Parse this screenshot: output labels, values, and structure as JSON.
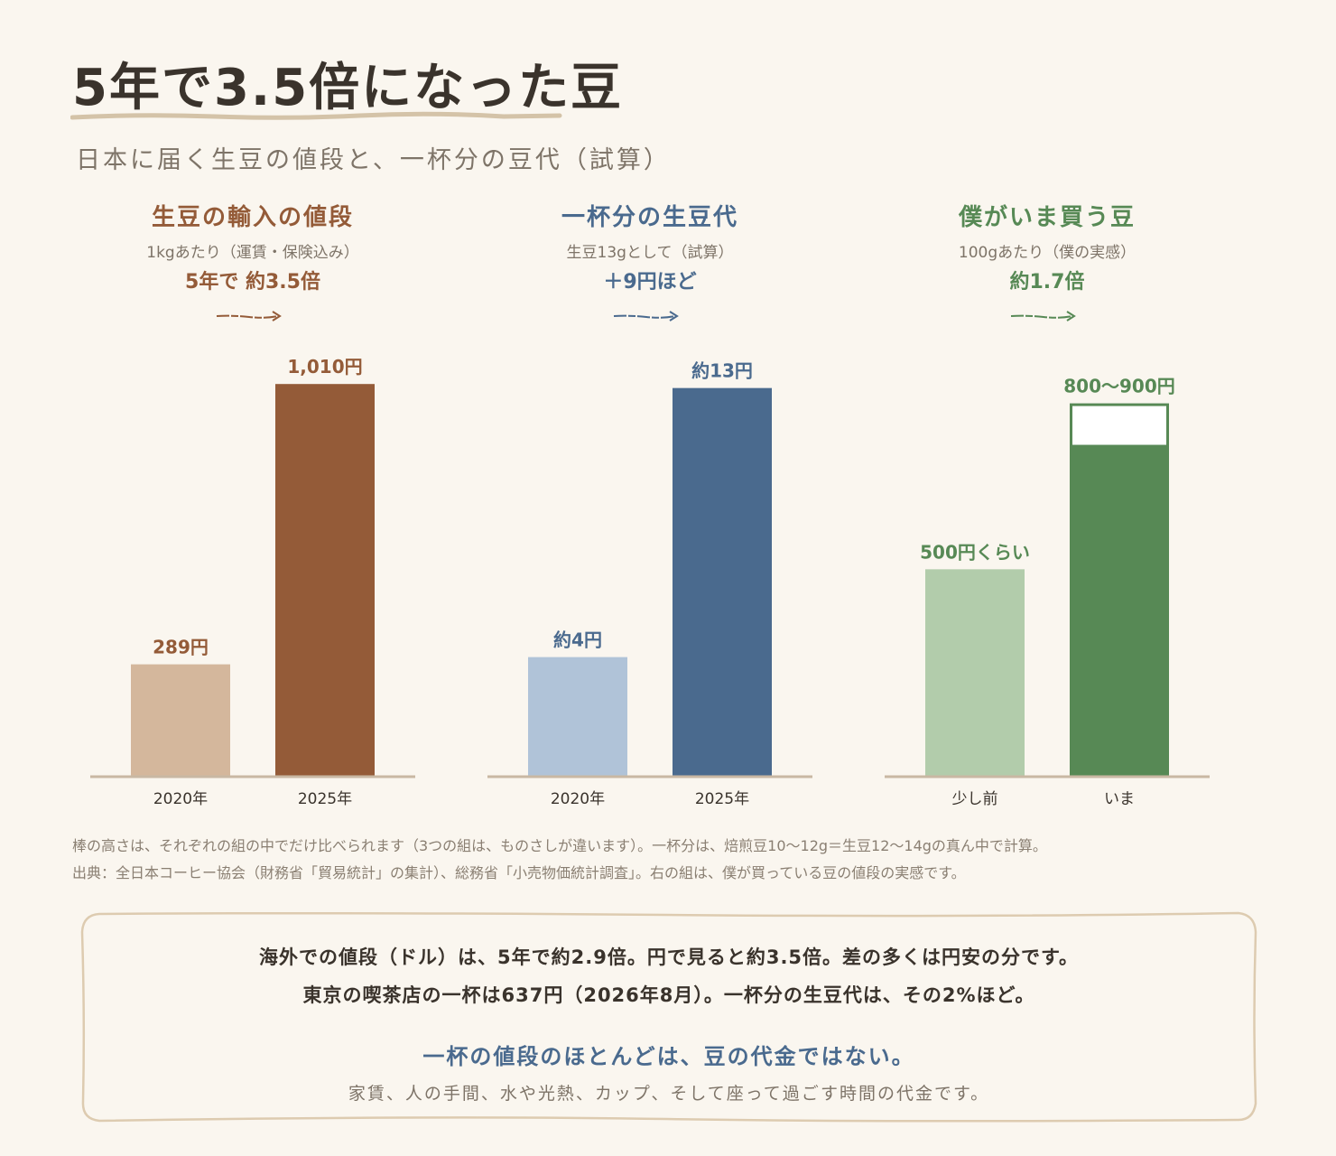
{
  "title": "5年で3.5倍になった豆",
  "subtitle": "日本に届く生豆の値段と、一杯分の豆代（試算）",
  "colors": {
    "background": "#faf6ef",
    "axis": "#c9b8a3",
    "brown_light": "#d4b79c",
    "brown_dark": "#945b38",
    "blue_light": "#b0c3d8",
    "blue_dark": "#4a6a8e",
    "green_light": "#b2ccab",
    "green_dark": "#578955"
  },
  "chart_data": [
    {
      "type": "bar",
      "title": "生豆の輸入の値段",
      "subtitle": "1kgあたり（運賃・保険込み）",
      "ratio_label": "5年で 約3.5倍",
      "categories": [
        "2020年",
        "2025年"
      ],
      "values": [
        289,
        1010
      ],
      "value_labels": [
        "289円",
        "1,010円"
      ],
      "colors": [
        "#d4b79c",
        "#945b38"
      ],
      "accent": "#945b38",
      "ylim": [
        0,
        1115
      ]
    },
    {
      "type": "bar",
      "title": "一杯分の生豆代",
      "subtitle": "生豆13gとして（試算）",
      "ratio_label": "＋9円ほど",
      "categories": [
        "2020年",
        "2025年"
      ],
      "values": [
        4,
        13
      ],
      "value_labels": [
        "約4円",
        "約13円"
      ],
      "colors": [
        "#b0c3d8",
        "#4a6a8e"
      ],
      "accent": "#4a6a8e",
      "ylim": [
        0,
        14.5
      ]
    },
    {
      "type": "bar",
      "title": "僕がいま買う豆",
      "subtitle": "100gあたり（僕の実感）",
      "ratio_label": "約1.7倍",
      "categories": [
        "少し前",
        "いま"
      ],
      "values": [
        500,
        [
          800,
          900
        ]
      ],
      "value_labels": [
        "500円くらい",
        "800〜900円"
      ],
      "colors": [
        "#b2ccab",
        "#578955"
      ],
      "accent": "#578955",
      "ylim": [
        0,
        1045
      ]
    }
  ],
  "notes": [
    "棒の高さは、それぞれの組の中でだけ比べられます（3つの組は、ものさしが違います）。一杯分は、焙煎豆10〜12g＝生豆12〜14gの真ん中で計算。",
    "出典：全日本コーヒー協会（財務省「貿易統計」の集計）、総務省「小売物価統計調査」。右の組は、僕が買っている豆の値段の実感です。"
  ],
  "summary": {
    "line1": "海外での値段（ドル）は、5年で約2.9倍。円で見ると約3.5倍。差の多くは円安の分です。",
    "line2": "東京の喫茶店の一杯は637円（2026年8月）。一杯分の生豆代は、その2%ほど。",
    "headline": "一杯の値段のほとんどは、豆の代金ではない。",
    "footer": "家賃、人の手間、水や光熱、カップ、そして座って過ごす時間の代金です。"
  }
}
